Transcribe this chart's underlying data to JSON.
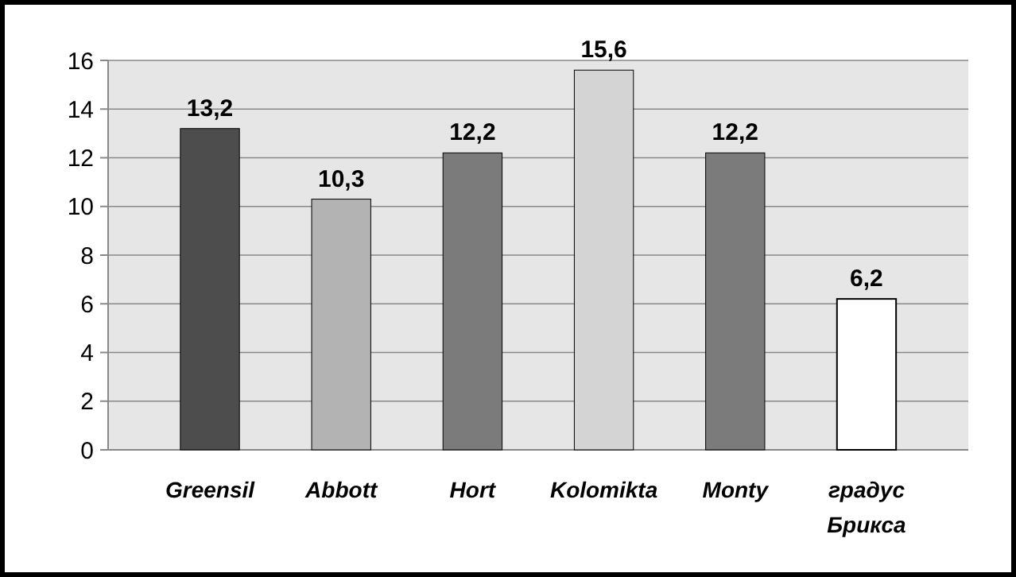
{
  "chart_data": {
    "type": "bar",
    "categories": [
      "Greensil",
      "Abbott",
      "Hort",
      "Kolomikta",
      "Monty",
      "градус Брикса"
    ],
    "values": [
      13.2,
      10.3,
      12.2,
      15.6,
      12.2,
      6.2
    ],
    "colors": [
      "#4d4d4d",
      "#b3b3b3",
      "#7b7b7b",
      "#d4d4d4",
      "#7b7b7b",
      "#ffffff"
    ],
    "value_labels": [
      "13,2",
      "10,3",
      "12,2",
      "15,6",
      "12,2",
      "6,2"
    ],
    "ylim": [
      0,
      16
    ],
    "yticks": [
      0,
      2,
      4,
      6,
      8,
      10,
      12,
      14,
      16
    ],
    "grid": "y"
  }
}
